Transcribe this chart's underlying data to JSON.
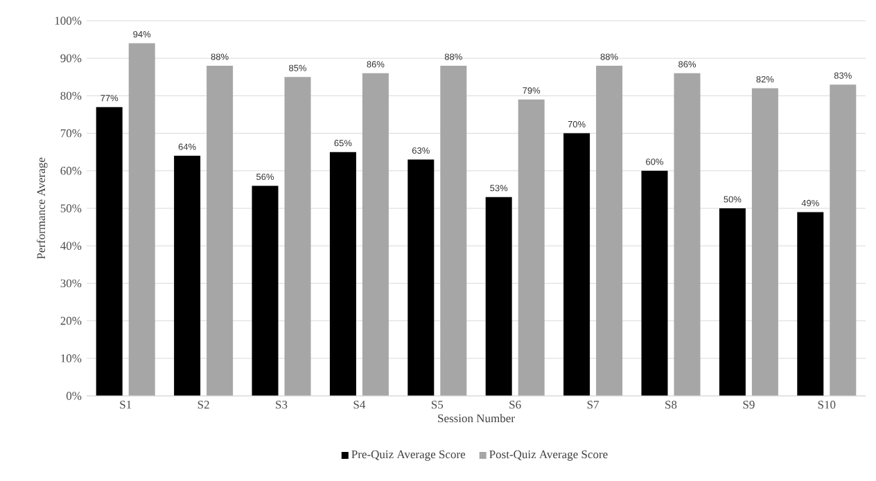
{
  "chart_data": {
    "type": "bar",
    "xlabel": "Session Number",
    "ylabel": "Performance Average",
    "categories": [
      "S1",
      "S2",
      "S3",
      "S4",
      "S5",
      "S6",
      "S7",
      "S8",
      "S9",
      "S10"
    ],
    "series": [
      {
        "name": "Pre-Quiz Average Score",
        "color": "#000000",
        "values": [
          77,
          64,
          56,
          65,
          63,
          53,
          70,
          60,
          50,
          49
        ],
        "value_labels": [
          "77%",
          "64%",
          "56%",
          "65%",
          "63%",
          "53%",
          "70%",
          "60%",
          "50%",
          "49%"
        ]
      },
      {
        "name": "Post-Quiz Average Score",
        "color": "#a6a6a6",
        "values": [
          94,
          88,
          85,
          86,
          88,
          79,
          88,
          86,
          82,
          83
        ],
        "value_labels": [
          "94%",
          "88%",
          "85%",
          "86%",
          "88%",
          "79%",
          "88%",
          "86%",
          "82%",
          "83%"
        ]
      }
    ],
    "ylim": [
      0,
      100
    ],
    "yticks": [
      {
        "value": 0,
        "label": "0%"
      },
      {
        "value": 10,
        "label": "10%"
      },
      {
        "value": 20,
        "label": "20%"
      },
      {
        "value": 30,
        "label": "30%"
      },
      {
        "value": 40,
        "label": "40%"
      },
      {
        "value": 50,
        "label": "50%"
      },
      {
        "value": 60,
        "label": "60%"
      },
      {
        "value": 70,
        "label": "70%"
      },
      {
        "value": 80,
        "label": "80%"
      },
      {
        "value": 90,
        "label": "90%"
      },
      {
        "value": 100,
        "label": "100%"
      }
    ],
    "grid": "y",
    "legend": "bottom"
  }
}
